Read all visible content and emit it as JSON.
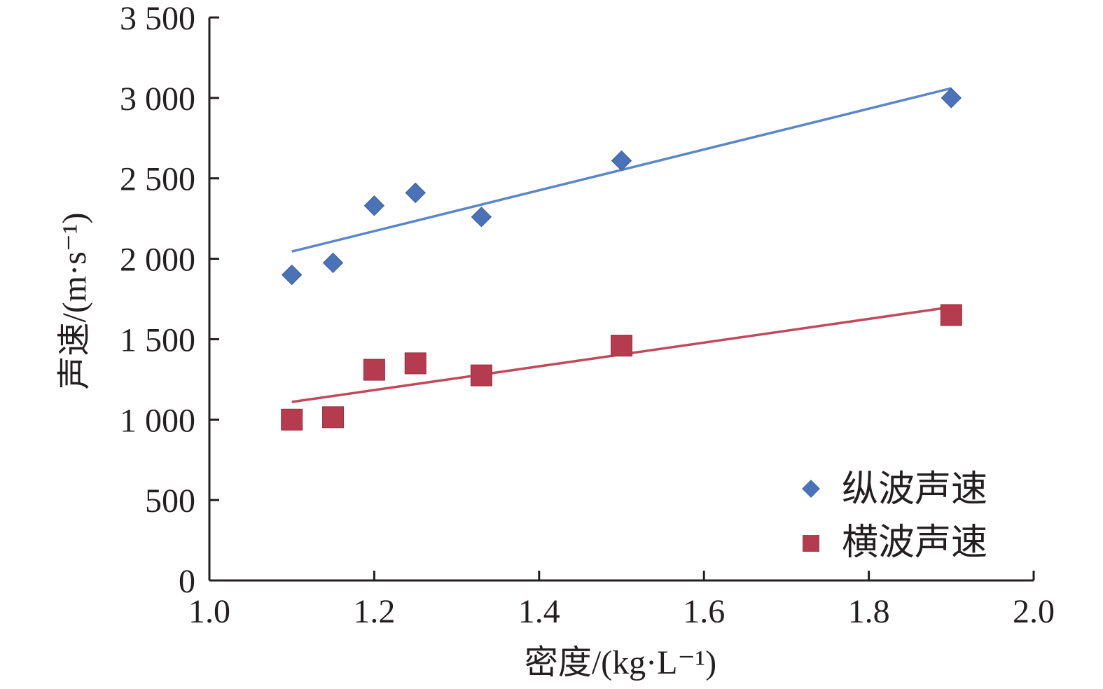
{
  "chart_data": {
    "type": "scatter",
    "xlabel": "密度/(kg·L⁻¹)",
    "ylabel": "声速/(m·s⁻¹)",
    "xlim": [
      1.0,
      2.0
    ],
    "ylim": [
      0,
      3500
    ],
    "xticks": [
      1.0,
      1.2,
      1.4,
      1.6,
      1.8,
      2.0
    ],
    "xtick_labels": [
      "1.0",
      "1.2",
      "1.4",
      "1.6",
      "1.8",
      "2.0"
    ],
    "yticks": [
      0,
      500,
      1000,
      1500,
      2000,
      2500,
      3000,
      3500
    ],
    "ytick_labels": [
      "0",
      "500",
      "1 000",
      "1 500",
      "2 000",
      "2 500",
      "3 000",
      "3 500"
    ],
    "grid": false,
    "legend_position": "bottom-right",
    "series": [
      {
        "name": "纵波声速",
        "marker": "diamond",
        "color": "#4a72b8",
        "line_color": "#5b86c9",
        "x": [
          1.1,
          1.15,
          1.2,
          1.25,
          1.33,
          1.5,
          1.9
        ],
        "y": [
          1900,
          1975,
          2330,
          2410,
          2260,
          2610,
          3000
        ],
        "trendline": {
          "x": [
            1.1,
            1.9
          ],
          "y": [
            2045,
            3060
          ]
        }
      },
      {
        "name": "横波声速",
        "marker": "square",
        "color": "#b43c4e",
        "line_color": "#c04a5c",
        "x": [
          1.1,
          1.15,
          1.2,
          1.25,
          1.33,
          1.5,
          1.9
        ],
        "y": [
          1000,
          1015,
          1310,
          1350,
          1275,
          1460,
          1650
        ],
        "trendline": {
          "x": [
            1.1,
            1.9
          ],
          "y": [
            1110,
            1700
          ]
        }
      }
    ]
  }
}
